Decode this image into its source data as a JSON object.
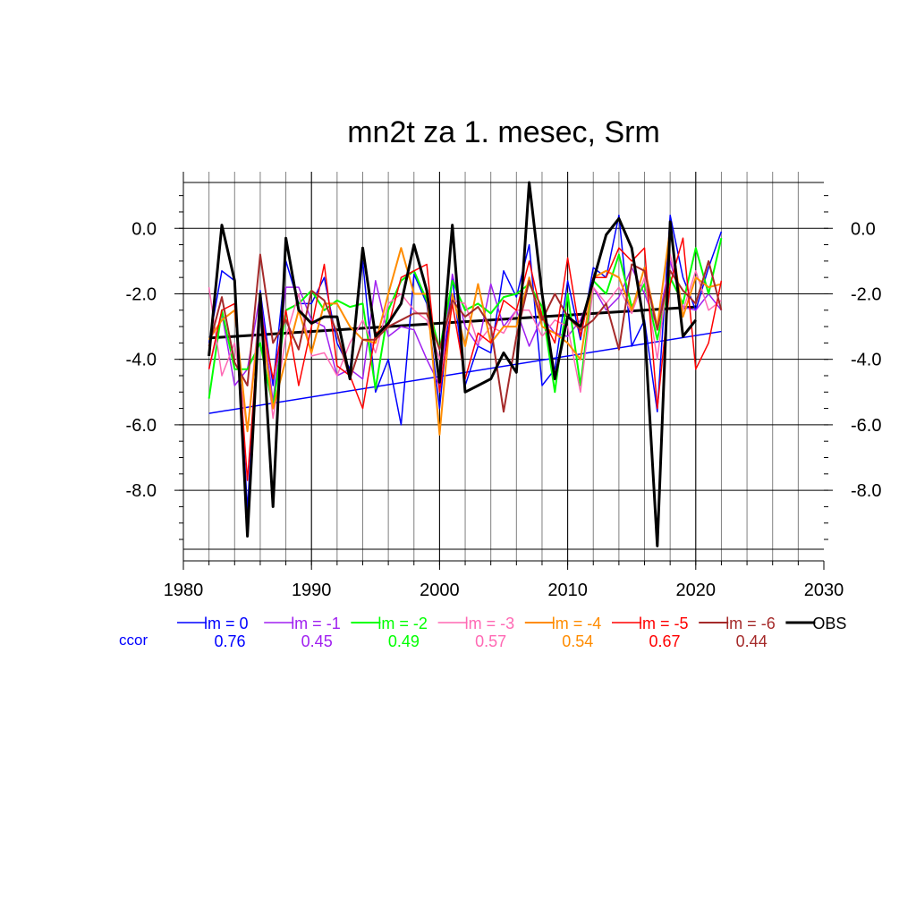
{
  "chart_data": {
    "type": "line",
    "title": "mn2t za 1. mesec, Srm",
    "xlabel": "",
    "ylabel": "",
    "xlim": [
      1980,
      2030
    ],
    "ylim": [
      -9.8,
      1.4
    ],
    "x_ticks": [
      1980,
      1990,
      2000,
      2010,
      2020,
      2030
    ],
    "x_tick_labels": [
      "1980",
      "1990",
      "2000",
      "2010",
      "2020",
      "2030"
    ],
    "y_ticks": [
      0,
      -2,
      -4,
      -6,
      -8
    ],
    "y_tick_labels": [
      "0.0",
      "-2.0",
      "-4.0",
      "-6.0",
      "-8.0"
    ],
    "grid": true,
    "legend_position": "bottom",
    "ccor_label": "ccor",
    "series": [
      {
        "name": "lm = 0",
        "color": "#0000ff",
        "width": 1.5,
        "ccor": "0.76",
        "x": [
          1982,
          1983,
          1984,
          1985,
          1986,
          1987,
          1988,
          1989,
          1990,
          1991,
          1992,
          1993,
          1994,
          1995,
          1996,
          1997,
          1998,
          1999,
          2000,
          2001,
          2002,
          2003,
          2004,
          2005,
          2006,
          2007,
          2008,
          2009,
          2010,
          2011,
          2012,
          2013,
          2014,
          2015,
          2016,
          2017,
          2018,
          2019,
          2020,
          2021,
          2022
        ],
        "y": [
          -3.5,
          -1.3,
          -1.6,
          -8.6,
          -1.9,
          -4.8,
          -1.0,
          -2.3,
          -2.3,
          -1.5,
          -3.5,
          -4.3,
          -1.0,
          -5.0,
          -4.0,
          -6.0,
          -1.4,
          -2.3,
          -5.5,
          -1.5,
          -4.8,
          -3.6,
          -3.8,
          -1.3,
          -2.1,
          -0.5,
          -4.8,
          -4.3,
          -1.6,
          -3.4,
          -1.2,
          -1.5,
          0.4,
          -3.6,
          -2.8,
          -5.6,
          0.4,
          -1.5,
          -2.5,
          -1.2,
          -0.1
        ]
      },
      {
        "name": "lm = -1",
        "color": "#a020f0",
        "width": 1.5,
        "ccor": "0.45",
        "x": [
          1982,
          1983,
          1984,
          1985,
          1986,
          1987,
          1988,
          1989,
          1990,
          1991,
          1992,
          1993,
          1994,
          1995,
          1996,
          1997,
          1998,
          1999,
          2000,
          2001,
          2002,
          2003,
          2004,
          2005,
          2006,
          2007,
          2008,
          2009,
          2010,
          2011,
          2012,
          2013,
          2014,
          2015,
          2016,
          2017,
          2018,
          2019,
          2020,
          2021,
          2022
        ],
        "y": [
          -4.3,
          -2.6,
          -4.8,
          -4.3,
          -2.0,
          -5.3,
          -1.8,
          -1.8,
          -2.8,
          -3.0,
          -4.5,
          -4.3,
          -4.6,
          -1.6,
          -3.3,
          -3.0,
          -3.1,
          -4.0,
          -4.8,
          -1.4,
          -3.0,
          -3.6,
          -1.7,
          -3.0,
          -2.5,
          -3.6,
          -2.7,
          -3.2,
          -3.3,
          -2.8,
          -1.8,
          -2.5,
          -2.1,
          -1.2,
          -2.0,
          -3.0,
          -1.0,
          -2.4,
          -2.5,
          -2.0,
          -2.5
        ]
      },
      {
        "name": "lm = -2",
        "color": "#00ff00",
        "width": 2,
        "ccor": "0.49",
        "x": [
          1982,
          1983,
          1984,
          1985,
          1986,
          1987,
          1988,
          1989,
          1990,
          1991,
          1992,
          1993,
          1994,
          1995,
          1996,
          1997,
          1998,
          1999,
          2000,
          2001,
          2002,
          2003,
          2004,
          2005,
          2006,
          2007,
          2008,
          2009,
          2010,
          2011,
          2012,
          2013,
          2014,
          2015,
          2016,
          2017,
          2018,
          2019,
          2020,
          2021,
          2022
        ],
        "y": [
          -5.2,
          -2.5,
          -4.3,
          -4.3,
          -3.5,
          -5.5,
          -2.5,
          -2.3,
          -1.9,
          -2.5,
          -2.2,
          -2.4,
          -2.3,
          -4.9,
          -2.5,
          -1.6,
          -1.3,
          -2.2,
          -3.7,
          -1.6,
          -2.5,
          -2.3,
          -2.6,
          -2.1,
          -2.0,
          -1.7,
          -2.4,
          -5.0,
          -2.0,
          -4.8,
          -1.6,
          -2.0,
          -0.8,
          -2.4,
          -1.7,
          -3.4,
          -1.5,
          -2.3,
          -0.6,
          -2.0,
          -0.3
        ]
      },
      {
        "name": "lm = -3",
        "color": "#ff69b4",
        "width": 1.5,
        "ccor": "0.57",
        "x": [
          1982,
          1983,
          1984,
          1985,
          1986,
          1987,
          1988,
          1989,
          1990,
          1991,
          1992,
          1993,
          1994,
          1995,
          1996,
          1997,
          1998,
          1999,
          2000,
          2001,
          2002,
          2003,
          2004,
          2005,
          2006,
          2007,
          2008,
          2009,
          2010,
          2011,
          2012,
          2013,
          2014,
          2015,
          2016,
          2017,
          2018,
          2019,
          2020,
          2021,
          2022
        ],
        "y": [
          -1.8,
          -4.5,
          -3.5,
          -6.2,
          -2.2,
          -5.8,
          -3.3,
          -2.0,
          -3.9,
          -3.8,
          -4.5,
          -3.5,
          -2.8,
          -3.8,
          -2.3,
          -2.0,
          -2.5,
          -2.8,
          -4.0,
          -2.2,
          -2.3,
          -3.5,
          -3.0,
          -3.2,
          -2.5,
          -2.5,
          -3.3,
          -2.8,
          -3.0,
          -5.0,
          -1.8,
          -2.3,
          -1.8,
          -2.6,
          -1.5,
          -4.0,
          -0.8,
          -2.5,
          -1.3,
          -2.5,
          -2.2
        ]
      },
      {
        "name": "lm = -4",
        "color": "#ff8c00",
        "width": 2,
        "ccor": "0.54",
        "x": [
          1982,
          1983,
          1984,
          1985,
          1986,
          1987,
          1988,
          1989,
          1990,
          1991,
          1992,
          1993,
          1994,
          1995,
          1996,
          1997,
          1998,
          1999,
          2000,
          2001,
          2002,
          2003,
          2004,
          2005,
          2006,
          2007,
          2008,
          2009,
          2010,
          2011,
          2012,
          2013,
          2014,
          2015,
          2016,
          2017,
          2018,
          2019,
          2020,
          2021,
          2022
        ],
        "y": [
          -3.4,
          -2.8,
          -2.5,
          -6.2,
          -2.6,
          -5.5,
          -4.0,
          -2.5,
          -3.8,
          -2.3,
          -2.3,
          -3.0,
          -3.4,
          -3.5,
          -2.0,
          -0.6,
          -2.0,
          -2.0,
          -6.3,
          -2.0,
          -3.6,
          -1.7,
          -3.5,
          -3.0,
          -3.0,
          -1.5,
          -3.0,
          -3.2,
          -3.5,
          -4.0,
          -1.5,
          -1.3,
          -1.5,
          -2.5,
          -1.2,
          -3.0,
          0.0,
          -2.7,
          -1.5,
          -1.8,
          -1.7
        ]
      },
      {
        "name": "lm = -5",
        "color": "#ff0000",
        "width": 1.5,
        "ccor": "0.67",
        "x": [
          1982,
          1983,
          1984,
          1985,
          1986,
          1987,
          1988,
          1989,
          1990,
          1991,
          1992,
          1993,
          1994,
          1995,
          1996,
          1997,
          1998,
          1999,
          2000,
          2001,
          2002,
          2003,
          2004,
          2005,
          2006,
          2007,
          2008,
          2009,
          2010,
          2011,
          2012,
          2013,
          2014,
          2015,
          2016,
          2017,
          2018,
          2019,
          2020,
          2021,
          2022
        ],
        "y": [
          -4.3,
          -2.5,
          -2.3,
          -7.7,
          -2.5,
          -4.6,
          -2.5,
          -4.8,
          -3.0,
          -1.1,
          -4.2,
          -4.5,
          -5.5,
          -3.2,
          -3.0,
          -1.5,
          -1.3,
          -1.1,
          -5.0,
          -2.3,
          -4.6,
          -3.2,
          -3.5,
          -2.2,
          -2.5,
          -1.0,
          -2.7,
          -3.5,
          -0.9,
          -3.3,
          -1.5,
          -1.5,
          -0.6,
          -1.0,
          -0.6,
          -5.5,
          -1.7,
          -0.3,
          -4.3,
          -3.5,
          -1.6
        ]
      },
      {
        "name": "lm = -6",
        "color": "#a52a2a",
        "width": 2,
        "ccor": "0.44",
        "x": [
          1982,
          1983,
          1984,
          1985,
          1986,
          1987,
          1988,
          1989,
          1990,
          1991,
          1992,
          1993,
          1994,
          1995,
          1996,
          1997,
          1998,
          1999,
          2000,
          2001,
          2002,
          2003,
          2004,
          2005,
          2006,
          2007,
          2008,
          2009,
          2010,
          2011,
          2012,
          2013,
          2014,
          2015,
          2016,
          2017,
          2018,
          2019,
          2020,
          2021,
          2022
        ],
        "y": [
          -3.6,
          -2.1,
          -4.1,
          -4.8,
          -0.8,
          -3.5,
          -2.8,
          -3.7,
          -1.9,
          -2.2,
          -3.2,
          -4.6,
          -3.4,
          -3.4,
          -3.0,
          -2.8,
          -2.6,
          -2.6,
          -3.7,
          -2.2,
          -2.7,
          -2.4,
          -3.0,
          -5.6,
          -3.3,
          -1.6,
          -2.8,
          -2.0,
          -2.7,
          -3.1,
          -2.8,
          -2.3,
          -3.7,
          -1.1,
          -1.3,
          -3.1,
          -1.3,
          -1.9,
          -2.3,
          -1.0,
          -2.5
        ]
      },
      {
        "name": "OBS",
        "color": "#000000",
        "width": 3,
        "ccor": "",
        "x": [
          1982,
          1983,
          1984,
          1985,
          1986,
          1987,
          1988,
          1989,
          1990,
          1991,
          1992,
          1993,
          1994,
          1995,
          1996,
          1997,
          1998,
          1999,
          2000,
          2001,
          2002,
          2003,
          2004,
          2005,
          2006,
          2007,
          2008,
          2009,
          2010,
          2011,
          2012,
          2013,
          2014,
          2015,
          2016,
          2017,
          2018,
          2019,
          2020
        ],
        "y": [
          -3.9,
          0.1,
          -1.6,
          -9.4,
          -2.0,
          -8.5,
          -0.3,
          -2.5,
          -2.9,
          -2.7,
          -2.7,
          -4.6,
          -0.6,
          -3.3,
          -2.9,
          -2.3,
          -0.5,
          -1.9,
          -4.7,
          0.1,
          -5.0,
          -4.8,
          -4.6,
          -3.8,
          -4.4,
          1.4,
          -2.0,
          -4.6,
          -2.7,
          -3.0,
          -1.6,
          -0.2,
          0.3,
          -0.6,
          -3.0,
          -9.7,
          0.2,
          -3.3,
          -2.8
        ]
      }
    ],
    "trend_lines": [
      {
        "name": "lm = 0 trend",
        "color": "#0000ff",
        "width": 1.5,
        "x": [
          1982,
          2022
        ],
        "y": [
          -5.65,
          -3.15
        ]
      },
      {
        "name": "OBS trend",
        "color": "#000000",
        "width": 3,
        "x": [
          1982,
          2020
        ],
        "y": [
          -3.35,
          -2.4
        ]
      }
    ]
  }
}
